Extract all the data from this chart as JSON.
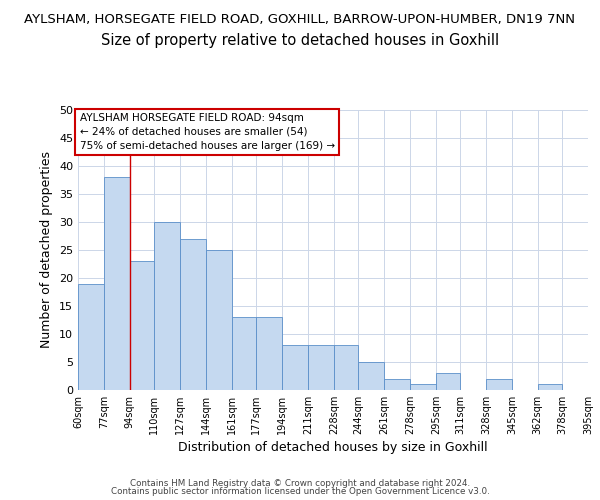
{
  "title_main": "AYLSHAM, HORSEGATE FIELD ROAD, GOXHILL, BARROW-UPON-HUMBER, DN19 7NN",
  "title_sub": "Size of property relative to detached houses in Goxhill",
  "xlabel": "Distribution of detached houses by size in Goxhill",
  "ylabel": "Number of detached properties",
  "bar_color": "#c5d9f0",
  "bar_edge_color": "#5b8fc9",
  "bin_labels": [
    "60sqm",
    "77sqm",
    "94sqm",
    "110sqm",
    "127sqm",
    "144sqm",
    "161sqm",
    "177sqm",
    "194sqm",
    "211sqm",
    "228sqm",
    "244sqm",
    "261sqm",
    "278sqm",
    "295sqm",
    "311sqm",
    "328sqm",
    "345sqm",
    "362sqm",
    "378sqm",
    "395sqm"
  ],
  "bar_values": [
    19,
    38,
    23,
    30,
    27,
    25,
    13,
    13,
    8,
    8,
    8,
    5,
    2,
    1,
    3,
    0,
    2,
    0,
    1,
    0
  ],
  "bin_edges": [
    60,
    77,
    94,
    110,
    127,
    144,
    161,
    177,
    194,
    211,
    228,
    244,
    261,
    278,
    295,
    311,
    328,
    345,
    362,
    378,
    395
  ],
  "ylim": [
    0,
    50
  ],
  "yticks": [
    0,
    5,
    10,
    15,
    20,
    25,
    30,
    35,
    40,
    45,
    50
  ],
  "vline_x": 94,
  "vline_color": "#cc0000",
  "annotation_text": "AYLSHAM HORSEGATE FIELD ROAD: 94sqm\n← 24% of detached houses are smaller (54)\n75% of semi-detached houses are larger (169) →",
  "annotation_box_color": "#ffffff",
  "annotation_box_edge_color": "#cc0000",
  "grid_color": "#ccd6e8",
  "background_color": "#ffffff",
  "footer_line1": "Contains HM Land Registry data © Crown copyright and database right 2024.",
  "footer_line2": "Contains public sector information licensed under the Open Government Licence v3.0.",
  "title_main_fontsize": 9.5,
  "title_sub_fontsize": 10.5
}
